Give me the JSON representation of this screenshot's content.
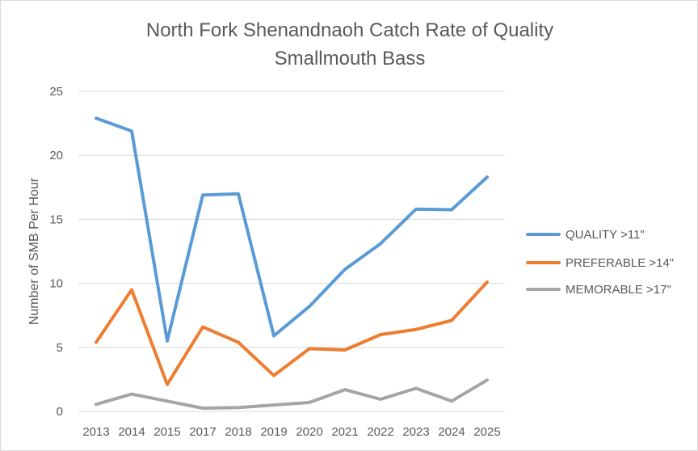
{
  "chart_data": {
    "type": "line",
    "title": [
      "North Fork Shenandnaoh  Catch Rate of Quality",
      "Smallmouth Bass"
    ],
    "xlabel": "",
    "ylabel": "Number of SMB Per Hour",
    "categories": [
      "2013",
      "2014",
      "2015",
      "2017",
      "2018",
      "2019",
      "2020",
      "2021",
      "2022",
      "2023",
      "2024",
      "2025"
    ],
    "ylim": [
      0,
      25
    ],
    "yticks": [
      0,
      5,
      10,
      15,
      20,
      25
    ],
    "grid": true,
    "legend_position": "right",
    "series": [
      {
        "name": "QUALITY >11\"",
        "color": "#5b9bd5",
        "values": [
          22.9,
          21.9,
          5.5,
          16.9,
          17.0,
          5.9,
          8.2,
          11.1,
          13.1,
          15.8,
          15.75,
          18.3
        ]
      },
      {
        "name": "PREFERABLE >14\"",
        "color": "#ed7d31",
        "values": [
          5.4,
          9.5,
          2.1,
          6.6,
          5.4,
          2.8,
          4.9,
          4.8,
          6.0,
          6.4,
          7.1,
          10.1
        ]
      },
      {
        "name": "MEMORABLE >17\"",
        "color": "#a5a5a5",
        "values": [
          0.55,
          1.35,
          0.8,
          0.25,
          0.3,
          0.5,
          0.7,
          1.7,
          0.95,
          1.8,
          0.8,
          2.45
        ]
      }
    ]
  }
}
